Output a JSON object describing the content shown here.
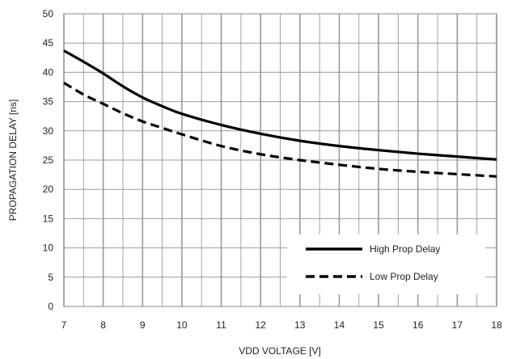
{
  "chart_data": {
    "type": "line",
    "title": "",
    "xlabel": "VDD VOLTAGE [V]",
    "ylabel": "PROPAGATION DELAY [ns]",
    "xlim": [
      7,
      18
    ],
    "ylim": [
      0,
      50
    ],
    "x_ticks": [
      7,
      8,
      9,
      10,
      11,
      12,
      13,
      14,
      15,
      16,
      17,
      18
    ],
    "y_ticks": [
      0,
      5,
      10,
      15,
      20,
      25,
      30,
      35,
      40,
      45,
      50
    ],
    "x_minor_step": 0.5,
    "grid": true,
    "legend_position": "bottom-right",
    "series": [
      {
        "name": "High Prop Delay",
        "style": "solid",
        "x": [
          7,
          7.5,
          8,
          8.5,
          9,
          9.5,
          10,
          11,
          12,
          13,
          14,
          15,
          16,
          17,
          18
        ],
        "y": [
          43.7,
          41.8,
          39.8,
          37.6,
          35.7,
          34.2,
          32.9,
          31.0,
          29.5,
          28.3,
          27.4,
          26.7,
          26.1,
          25.6,
          25.1
        ]
      },
      {
        "name": "Low Prop Delay",
        "style": "dashed",
        "x": [
          7,
          7.5,
          8,
          8.5,
          9,
          9.5,
          10,
          11,
          12,
          13,
          14,
          15,
          16,
          17,
          18
        ],
        "y": [
          38.2,
          36.2,
          34.6,
          33.0,
          31.6,
          30.5,
          29.4,
          27.4,
          26.0,
          25.0,
          24.2,
          23.5,
          23.0,
          22.6,
          22.2
        ]
      }
    ]
  },
  "colors": {
    "line": "#000000",
    "grid": "#9a9a9a",
    "frame": "#8a8a8a"
  }
}
